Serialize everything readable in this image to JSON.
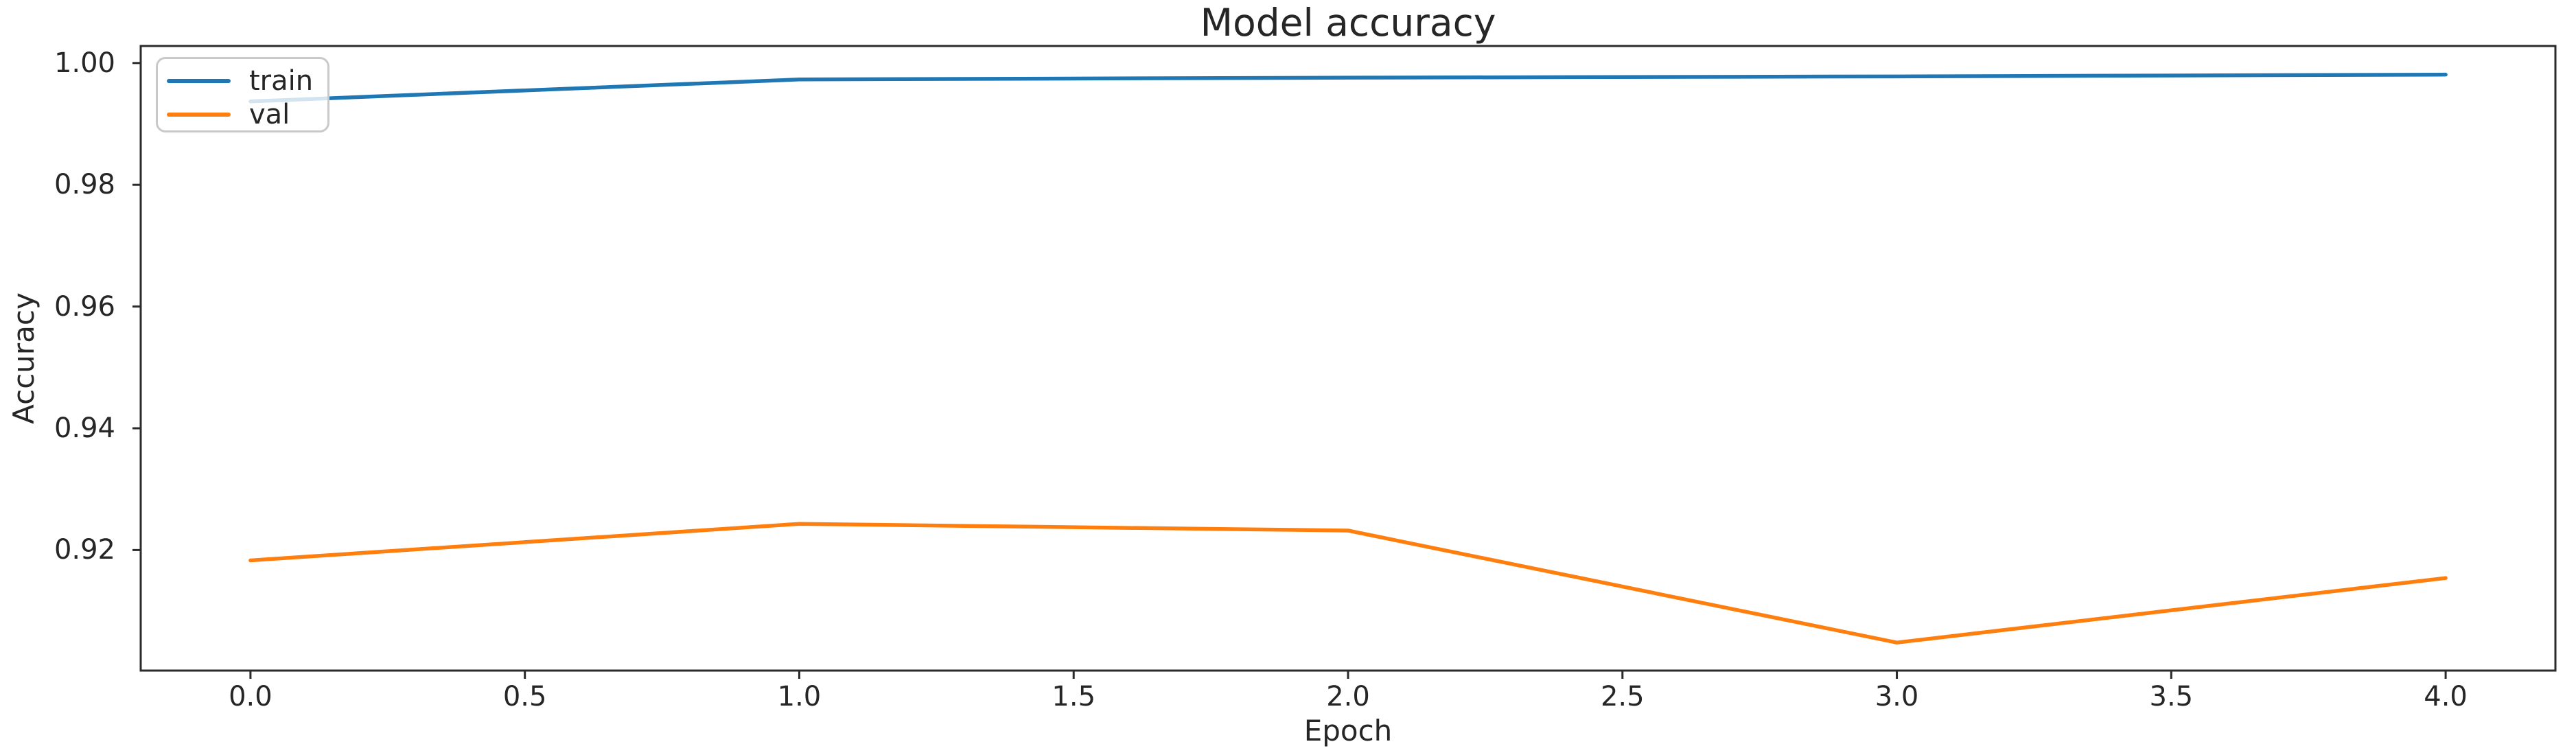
{
  "chart_data": {
    "type": "line",
    "title": "Model accuracy",
    "xlabel": "Epoch",
    "ylabel": "Accuracy",
    "x": [
      0,
      1,
      2,
      3,
      4
    ],
    "series": [
      {
        "name": "train",
        "color": "#1f77b4",
        "values": [
          0.9937,
          0.9973,
          0.9976,
          0.9978,
          0.9981
        ]
      },
      {
        "name": "val",
        "color": "#ff7f0e",
        "values": [
          0.9183,
          0.9243,
          0.9232,
          0.9048,
          0.9154
        ]
      }
    ],
    "xlim": [
      -0.2,
      4.2
    ],
    "ylim": [
      0.9002,
      1.0028
    ],
    "xticks": {
      "values": [
        0,
        0.5,
        1,
        1.5,
        2,
        2.5,
        3,
        3.5,
        4
      ],
      "labels": [
        "0.0",
        "0.5",
        "1.0",
        "1.5",
        "2.0",
        "2.5",
        "3.0",
        "3.5",
        "4.0"
      ]
    },
    "yticks": {
      "values": [
        0.92,
        0.94,
        0.96,
        0.98,
        1.0
      ],
      "labels": [
        "0.92",
        "0.94",
        "0.96",
        "0.98",
        "1.00"
      ]
    },
    "legend": {
      "position": "upper left",
      "entries": [
        "train",
        "val"
      ]
    },
    "grid": false,
    "axis_color": "#2b2b2b",
    "text_color": "#262626",
    "background_color": "#ffffff"
  }
}
